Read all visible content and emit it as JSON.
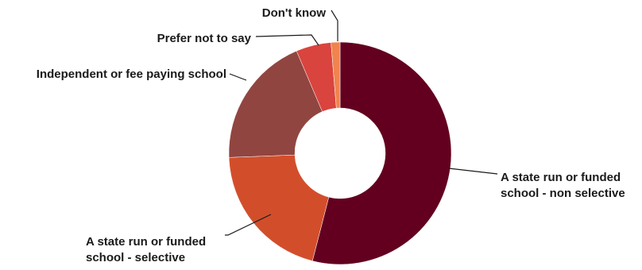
{
  "chart_data": {
    "type": "pie",
    "donut": true,
    "title": "",
    "start_angle_deg": 0,
    "direction": "clockwise",
    "series": [
      {
        "name": "",
        "slices": [
          {
            "label": "A state run or funded school - non selective",
            "lines": [
              "A state run or funded",
              "school - non selective"
            ],
            "value": 54.0,
            "color": "#63001f"
          },
          {
            "label": "A state run or funded school - selective",
            "lines": [
              "A state run or funded",
              "school - selective"
            ],
            "value": 20.4,
            "color": "#d24e2b"
          },
          {
            "label": "Independent or fee paying school",
            "lines": [
              "Independent or fee paying school"
            ],
            "value": 19.2,
            "color": "#914540"
          },
          {
            "label": "Prefer not to say",
            "lines": [
              "Prefer not to say"
            ],
            "value": 5.1,
            "color": "#d9443e"
          },
          {
            "label": "Don't know",
            "lines": [
              "Don't know"
            ],
            "value": 1.3,
            "color": "#f0834e"
          }
        ]
      }
    ],
    "legend": "none",
    "labels": "outside-with-leader-lines"
  }
}
